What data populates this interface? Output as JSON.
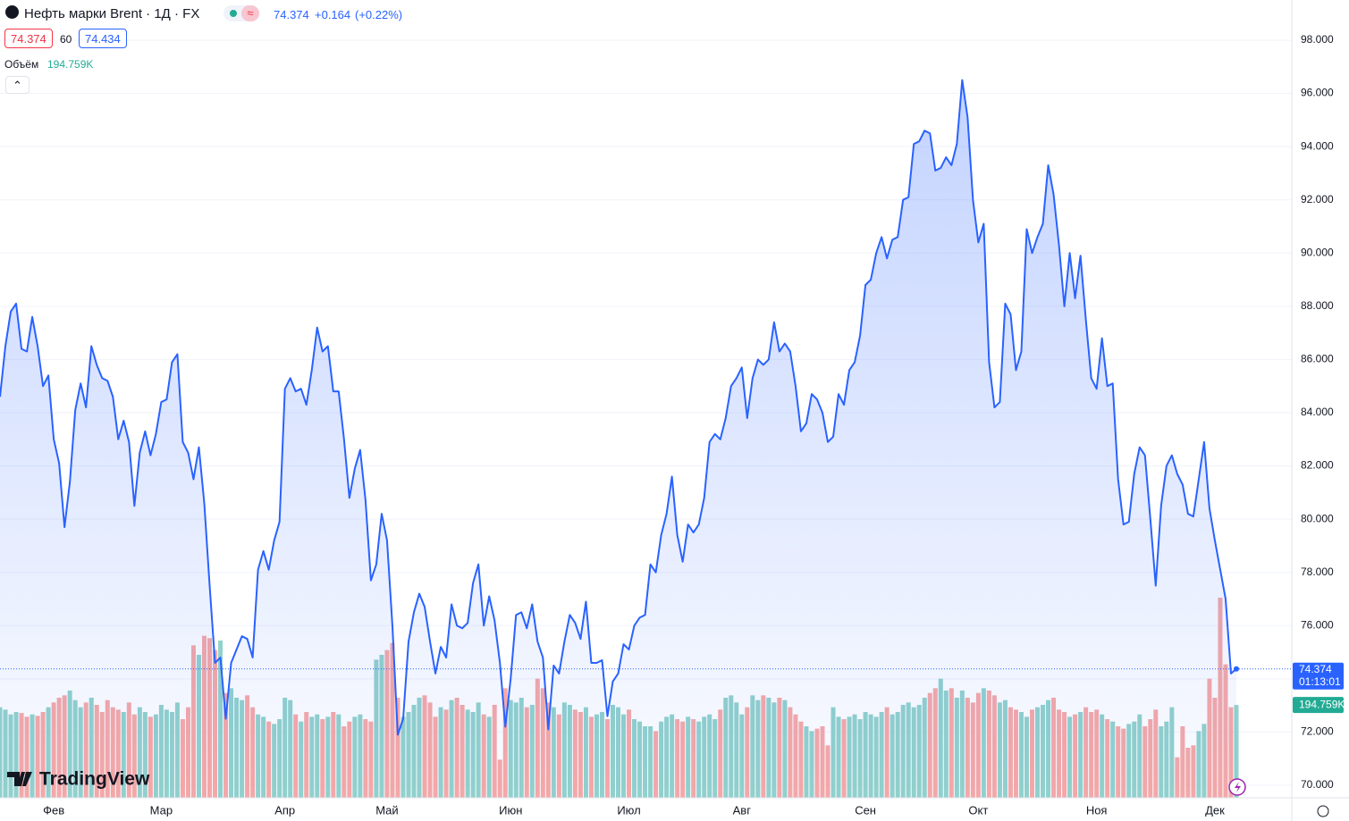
{
  "chart_data": {
    "type": "area",
    "title": "Нефть марки Brent · 1Д · FX",
    "color": "#2962ff",
    "categories": [
      null,
      null,
      null,
      null,
      null,
      null,
      null,
      null,
      null,
      null,
      "Фев",
      null,
      null,
      null,
      null,
      null,
      null,
      null,
      null,
      null,
      null,
      null,
      null,
      null,
      null,
      null,
      null,
      null,
      null,
      null,
      "Мар",
      null,
      null,
      null,
      null,
      null,
      null,
      null,
      null,
      null,
      null,
      null,
      null,
      null,
      null,
      null,
      null,
      null,
      null,
      null,
      null,
      null,
      null,
      "Апр",
      null,
      null,
      null,
      null,
      null,
      null,
      null,
      null,
      null,
      null,
      null,
      null,
      null,
      null,
      null,
      null,
      null,
      null,
      "Май",
      null,
      null,
      null,
      null,
      null,
      null,
      null,
      null,
      null,
      null,
      null,
      null,
      null,
      null,
      null,
      null,
      null,
      null,
      null,
      null,
      null,
      null,
      "Июн",
      null,
      null,
      null,
      null,
      null,
      null,
      null,
      null,
      null,
      null,
      null,
      null,
      null,
      null,
      null,
      null,
      null,
      null,
      null,
      null,
      null,
      "Июл",
      null,
      null,
      null,
      null,
      null,
      null,
      null,
      null,
      null,
      null,
      null,
      null,
      null,
      null,
      null,
      null,
      null,
      null,
      null,
      null,
      "Авг",
      null,
      null,
      null,
      null,
      null,
      null,
      null,
      null,
      null,
      null,
      null,
      null,
      null,
      null,
      null,
      null,
      null,
      null,
      null,
      null,
      null,
      null,
      "Сен",
      null,
      null,
      null,
      null,
      null,
      null,
      null,
      null,
      null,
      null,
      null,
      null,
      null,
      null,
      null,
      null,
      null,
      null,
      null,
      null,
      "Окт",
      null,
      null,
      null,
      null,
      null,
      null,
      null,
      null,
      null,
      null,
      null,
      null,
      null,
      null,
      null,
      null,
      null,
      null,
      null,
      null,
      null,
      "Ноя",
      null,
      null,
      null,
      null,
      null,
      null,
      null,
      null,
      null,
      null,
      null,
      null,
      null,
      null,
      null,
      null,
      null,
      null,
      null,
      null,
      null,
      "Дек",
      null,
      null,
      null,
      null
    ],
    "values": [
      84.6,
      86.5,
      87.8,
      88.1,
      86.4,
      86.3,
      87.6,
      86.5,
      85.0,
      85.4,
      83.0,
      82.1,
      79.7,
      81.4,
      84.1,
      85.1,
      84.2,
      86.5,
      85.8,
      85.3,
      85.2,
      84.6,
      83.0,
      83.7,
      82.9,
      80.5,
      82.5,
      83.3,
      82.4,
      83.2,
      84.4,
      84.5,
      85.9,
      86.2,
      82.9,
      82.5,
      81.5,
      82.7,
      80.6,
      77.5,
      74.6,
      74.8,
      72.5,
      74.6,
      75.1,
      75.6,
      75.5,
      74.8,
      78.1,
      78.8,
      78.1,
      79.2,
      79.9,
      84.9,
      85.3,
      84.8,
      84.9,
      84.3,
      85.6,
      87.2,
      86.3,
      86.5,
      84.8,
      84.8,
      83.0,
      80.8,
      81.9,
      82.6,
      80.7,
      77.7,
      78.3,
      80.2,
      79.2,
      76.0,
      71.9,
      72.5,
      75.4,
      76.5,
      77.2,
      76.7,
      75.4,
      74.2,
      75.2,
      74.8,
      76.8,
      76.0,
      75.9,
      76.1,
      77.6,
      78.3,
      76.0,
      77.1,
      76.2,
      74.6,
      72.2,
      74.0,
      76.4,
      76.5,
      75.9,
      76.8,
      75.4,
      74.8,
      72.1,
      74.5,
      74.2,
      75.4,
      76.4,
      76.1,
      75.5,
      76.9,
      74.6,
      74.6,
      74.7,
      72.6,
      73.9,
      74.2,
      75.3,
      75.1,
      76.0,
      76.3,
      76.4,
      78.3,
      78.0,
      79.4,
      80.2,
      81.6,
      79.4,
      78.4,
      79.8,
      79.5,
      79.8,
      80.8,
      82.9,
      83.2,
      83.0,
      83.8,
      85.0,
      85.3,
      85.7,
      83.8,
      85.3,
      86.0,
      85.8,
      86.0,
      87.4,
      86.3,
      86.6,
      86.3,
      85.0,
      83.3,
      83.6,
      84.7,
      84.5,
      84.0,
      82.9,
      83.1,
      84.7,
      84.3,
      85.6,
      85.9,
      86.9,
      88.8,
      89.0,
      90.0,
      90.6,
      89.8,
      90.5,
      90.6,
      92.0,
      92.1,
      94.1,
      94.2,
      94.6,
      94.5,
      93.1,
      93.2,
      93.6,
      93.3,
      94.1,
      96.5,
      95.1,
      92.0,
      90.4,
      91.1,
      85.9,
      84.2,
      84.4,
      88.1,
      87.7,
      85.6,
      86.3,
      90.9,
      90.0,
      90.6,
      91.1,
      93.3,
      92.2,
      90.3,
      88.0,
      90.0,
      88.3,
      89.9,
      87.5,
      85.3,
      84.9,
      86.8,
      85.0,
      85.1,
      81.5,
      79.8,
      79.9,
      81.7,
      82.7,
      82.4,
      80.0,
      77.5,
      80.5,
      82.0,
      82.4,
      81.7,
      81.3,
      80.2,
      80.1,
      81.5,
      82.9,
      80.4,
      79.2,
      78.1,
      77.0,
      74.2,
      74.374
    ],
    "volume": {
      "name": "Объём",
      "up_color": "#92d2cc",
      "down_color": "#f7a9a7",
      "last_value_label": "194.759K",
      "values": [
        190,
        185,
        175,
        180,
        178,
        170,
        175,
        172,
        180,
        190,
        200,
        210,
        215,
        225,
        205,
        190,
        200,
        210,
        195,
        180,
        205,
        190,
        185,
        180,
        200,
        175,
        190,
        180,
        170,
        175,
        195,
        185,
        180,
        200,
        165,
        190,
        320,
        300,
        340,
        335,
        310,
        330,
        220,
        230,
        210,
        205,
        215,
        190,
        175,
        170,
        160,
        155,
        165,
        210,
        205,
        175,
        160,
        180,
        170,
        175,
        165,
        170,
        180,
        175,
        150,
        160,
        170,
        175,
        165,
        160,
        290,
        300,
        310,
        325,
        210,
        170,
        180,
        195,
        210,
        215,
        200,
        170,
        190,
        185,
        205,
        210,
        195,
        185,
        180,
        200,
        175,
        170,
        195,
        80,
        230,
        205,
        200,
        210,
        190,
        195,
        250,
        230,
        200,
        190,
        175,
        200,
        195,
        185,
        180,
        190,
        170,
        175,
        180,
        165,
        195,
        190,
        175,
        185,
        165,
        160,
        150,
        150,
        140,
        160,
        170,
        175,
        165,
        160,
        170,
        165,
        160,
        170,
        175,
        165,
        185,
        210,
        215,
        200,
        175,
        190,
        215,
        205,
        215,
        210,
        200,
        210,
        205,
        190,
        175,
        160,
        150,
        140,
        145,
        150,
        110,
        190,
        170,
        165,
        170,
        175,
        165,
        180,
        175,
        170,
        180,
        190,
        175,
        180,
        195,
        200,
        190,
        195,
        210,
        220,
        230,
        250,
        225,
        230,
        210,
        225,
        210,
        200,
        220,
        230,
        225,
        215,
        200,
        205,
        190,
        185,
        180,
        170,
        185,
        190,
        195,
        205,
        210,
        185,
        180,
        170,
        175,
        180,
        190,
        180,
        185,
        175,
        165,
        160,
        150,
        145,
        155,
        160,
        175,
        150,
        165,
        185,
        150,
        160,
        190,
        85,
        150,
        105,
        110,
        140,
        155,
        250,
        210,
        420,
        280,
        190,
        194.759
      ]
    },
    "ylim": [
      69.53,
      99.51
    ],
    "yticks": [
      {
        "value": 70,
        "label": "70.000"
      },
      {
        "value": 72,
        "label": "72.000"
      },
      {
        "value": 74,
        "label": "74.000"
      },
      {
        "value": 76,
        "label": "76.000"
      },
      {
        "value": 78,
        "label": "78.000"
      },
      {
        "value": 80,
        "label": "80.000"
      },
      {
        "value": 82,
        "label": "82.000"
      },
      {
        "value": 84,
        "label": "84.000"
      },
      {
        "value": 86,
        "label": "86.000"
      },
      {
        "value": 88,
        "label": "88.000"
      },
      {
        "value": 90,
        "label": "90.000"
      },
      {
        "value": 92,
        "label": "92.000"
      },
      {
        "value": 94,
        "label": "94.000"
      },
      {
        "value": 96,
        "label": "96.000"
      },
      {
        "value": 98,
        "label": "98.000"
      }
    ],
    "grid": true,
    "countdown": "01:13:01"
  },
  "header": {
    "quote": "74.374",
    "change": "+0.164",
    "change_pct": "(+0.22%)",
    "bid": "74.374",
    "spread": "60",
    "ask": "74.434"
  },
  "branding": "TradingView"
}
